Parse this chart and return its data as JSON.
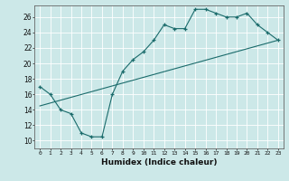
{
  "xlabel": "Humidex (Indice chaleur)",
  "ylabel": "",
  "background_color": "#cce8e8",
  "grid_color": "#ffffff",
  "line_color": "#1a6b6b",
  "xlim": [
    -0.5,
    23.5
  ],
  "ylim": [
    9.0,
    27.5
  ],
  "xticks": [
    0,
    1,
    2,
    3,
    4,
    5,
    6,
    7,
    8,
    9,
    10,
    11,
    12,
    13,
    14,
    15,
    16,
    17,
    18,
    19,
    20,
    21,
    22,
    23
  ],
  "yticks": [
    10,
    12,
    14,
    16,
    18,
    20,
    22,
    24,
    26
  ],
  "line1_x": [
    0,
    1,
    2,
    3,
    4,
    5,
    6,
    7,
    8,
    9,
    10,
    11,
    12,
    13,
    14,
    15,
    16,
    17,
    18,
    19,
    20,
    21,
    22,
    23
  ],
  "line1_y": [
    17.0,
    16.0,
    14.0,
    13.5,
    11.0,
    10.5,
    10.5,
    16.0,
    19.0,
    20.5,
    21.5,
    23.0,
    25.0,
    24.5,
    24.5,
    27.0,
    27.0,
    26.5,
    26.0,
    26.0,
    26.5,
    25.0,
    24.0,
    23.0
  ],
  "line2_x": [
    0,
    23
  ],
  "line2_y": [
    14.5,
    23.0
  ]
}
